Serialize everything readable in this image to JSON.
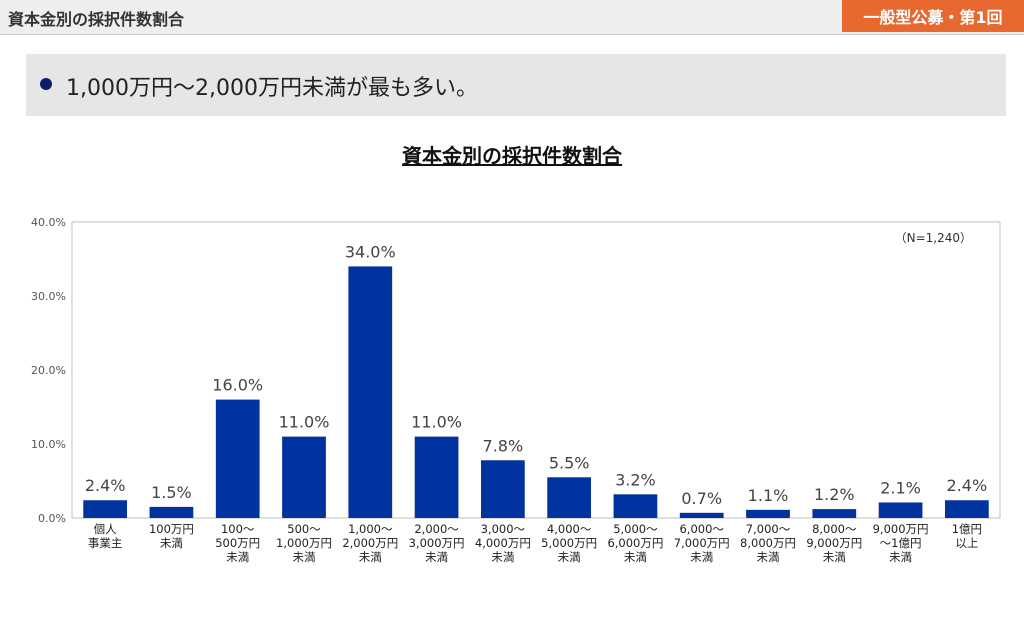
{
  "header": {
    "title": "資本金別の採択件数割合",
    "badge": "一般型公募・第1回"
  },
  "summary": {
    "text": "1,000万円〜2,000万円未満が最も多い。"
  },
  "chart_data": {
    "type": "bar",
    "title": "資本金別の採択件数割合",
    "annotation": "（N=1,240）",
    "categories": [
      [
        "個人",
        "事業主"
      ],
      [
        "100万円",
        "未満"
      ],
      [
        "100〜",
        "500万円",
        "未満"
      ],
      [
        "500〜",
        "1,000万円",
        "未満"
      ],
      [
        "1,000〜",
        "2,000万円",
        "未満"
      ],
      [
        "2,000〜",
        "3,000万円",
        "未満"
      ],
      [
        "3,000〜",
        "4,000万円",
        "未満"
      ],
      [
        "4,000〜",
        "5,000万円",
        "未満"
      ],
      [
        "5,000〜",
        "6,000万円",
        "未満"
      ],
      [
        "6,000〜",
        "7,000万円",
        "未満"
      ],
      [
        "7,000〜",
        "8,000万円",
        "未満"
      ],
      [
        "8,000〜",
        "9,000万円",
        "未満"
      ],
      [
        "9,000万円",
        "〜1億円",
        "未満"
      ],
      [
        "1億円",
        "以上"
      ]
    ],
    "values": [
      2.4,
      1.5,
      16.0,
      11.0,
      34.0,
      11.0,
      7.8,
      5.5,
      3.2,
      0.7,
      1.1,
      1.2,
      2.1,
      2.4
    ],
    "value_labels": [
      "2.4%",
      "1.5%",
      "16.0%",
      "11.0%",
      "34.0%",
      "11.0%",
      "7.8%",
      "5.5%",
      "3.2%",
      "0.7%",
      "1.1%",
      "1.2%",
      "2.1%",
      "2.4%"
    ],
    "yticks": [
      0,
      10,
      20,
      30,
      40
    ],
    "ytick_labels": [
      "0.0%",
      "10.0%",
      "20.0%",
      "30.0%",
      "40.0%"
    ],
    "ylim": [
      0,
      40
    ],
    "bar_color": "#0033a0",
    "grid": false,
    "legend": "none"
  }
}
